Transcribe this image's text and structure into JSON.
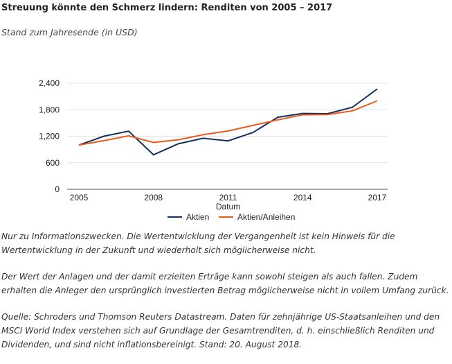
{
  "title": "Streuung könnte den Schmerz lindern: Renditen von 2005 – 2017",
  "subtitle": "Stand zum Jahresende (in USD)",
  "chart_data": {
    "type": "line",
    "xlabel": "Datum",
    "ylabel": "",
    "x": [
      2005,
      2006,
      2007,
      2008,
      2009,
      2010,
      2011,
      2012,
      2013,
      2014,
      2015,
      2016,
      2017
    ],
    "x_ticks": [
      "2005",
      "2008",
      "2011",
      "2014",
      "2017"
    ],
    "y_ticks": [
      "0",
      "600",
      "1,200",
      "1,800",
      "2,400"
    ],
    "ylim": [
      0,
      2400
    ],
    "grid": true,
    "legend": "bottom",
    "series": [
      {
        "name": "Aktien",
        "color": "#13305e",
        "values": [
          1000,
          1200,
          1315,
          780,
          1030,
          1155,
          1095,
          1285,
          1630,
          1715,
          1710,
          1855,
          2270
        ]
      },
      {
        "name": "Aktien/Anleihen",
        "color": "#ef5b1c",
        "values": [
          1000,
          1100,
          1210,
          1060,
          1120,
          1235,
          1320,
          1445,
          1570,
          1685,
          1690,
          1775,
          2000
        ]
      }
    ]
  },
  "notes": [
    "Nur zu Informationszwecken. Die Wertentwicklung der Vergangenheit ist kein Hinweis für die Wertentwicklung in der Zukunft und wiederholt sich möglicherweise nicht.",
    "Der Wert der Anlagen und der damit erzielten Erträge kann sowohl steigen als auch fallen. Zudem erhalten die Anleger den ursprünglich investierten Betrag möglicherweise nicht in vollem Umfang zurück.",
    "Quelle: Schroders und Thomson Reuters Datastream. Daten für zehnjährige US-Staatsanleihen und den MSCI World Index verstehen sich auf Grundlage der Gesamtrenditen, d. h. einschließlich Renditen und Dividenden, und sind nicht inflationsbereinigt. Stand: 20. August 2018."
  ]
}
